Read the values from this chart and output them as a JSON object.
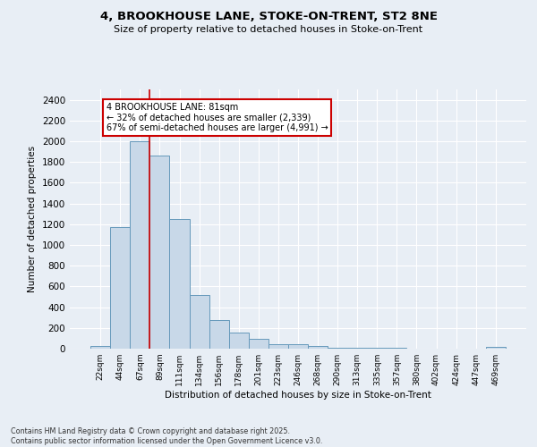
{
  "title_line1": "4, BROOKHOUSE LANE, STOKE-ON-TRENT, ST2 8NE",
  "title_line2": "Size of property relative to detached houses in Stoke-on-Trent",
  "xlabel": "Distribution of detached houses by size in Stoke-on-Trent",
  "ylabel": "Number of detached properties",
  "bar_color": "#c8d8e8",
  "bar_edge_color": "#6699bb",
  "background_color": "#e8eef5",
  "grid_color": "#ffffff",
  "categories": [
    "22sqm",
    "44sqm",
    "67sqm",
    "89sqm",
    "111sqm",
    "134sqm",
    "156sqm",
    "178sqm",
    "201sqm",
    "223sqm",
    "246sqm",
    "268sqm",
    "290sqm",
    "313sqm",
    "335sqm",
    "357sqm",
    "380sqm",
    "402sqm",
    "424sqm",
    "447sqm",
    "469sqm"
  ],
  "values": [
    28,
    1170,
    2000,
    1860,
    1250,
    520,
    280,
    155,
    95,
    40,
    40,
    22,
    12,
    10,
    8,
    5,
    4,
    3,
    3,
    2,
    15
  ],
  "vline_color": "#cc0000",
  "annotation_text": "4 BROOKHOUSE LANE: 81sqm\n← 32% of detached houses are smaller (2,339)\n67% of semi-detached houses are larger (4,991) →",
  "box_color": "#ffffff",
  "box_edge_color": "#cc0000",
  "ylim": [
    0,
    2500
  ],
  "yticks": [
    0,
    200,
    400,
    600,
    800,
    1000,
    1200,
    1400,
    1600,
    1800,
    2000,
    2200,
    2400
  ],
  "footer_line1": "Contains HM Land Registry data © Crown copyright and database right 2025.",
  "footer_line2": "Contains public sector information licensed under the Open Government Licence v3.0."
}
